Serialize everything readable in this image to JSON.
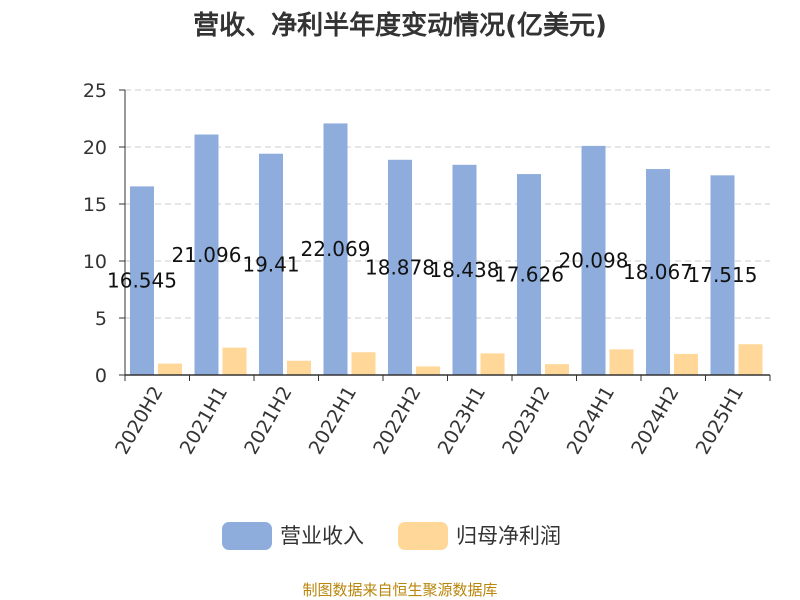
{
  "chart_data": {
    "type": "bar",
    "title": "营收、净利半年度变动情况(亿美元)",
    "categories": [
      "2020H2",
      "2021H1",
      "2021H2",
      "2022H1",
      "2022H2",
      "2023H1",
      "2023H2",
      "2024H1",
      "2024H2",
      "2025H1"
    ],
    "series": [
      {
        "name": "营业收入",
        "color": "#8eaddc",
        "values": [
          16.545,
          21.096,
          19.41,
          22.069,
          18.878,
          18.438,
          17.626,
          20.098,
          18.067,
          17.515
        ],
        "labels": [
          "16.545",
          "21.096",
          "19.41",
          "22.069",
          "18.878",
          "18.438",
          "17.626",
          "20.098",
          "18.067",
          "17.515"
        ]
      },
      {
        "name": "归母净利润",
        "color": "#ffd799",
        "values": [
          1.0,
          2.4,
          1.25,
          2.0,
          0.75,
          1.9,
          0.95,
          2.25,
          1.85,
          2.7
        ]
      }
    ],
    "ylim": [
      0,
      25
    ],
    "yticks": [
      0,
      5,
      10,
      15,
      20,
      25
    ],
    "grid": true,
    "legend": "bottom"
  },
  "source": "制图数据来自恒生聚源数据库"
}
